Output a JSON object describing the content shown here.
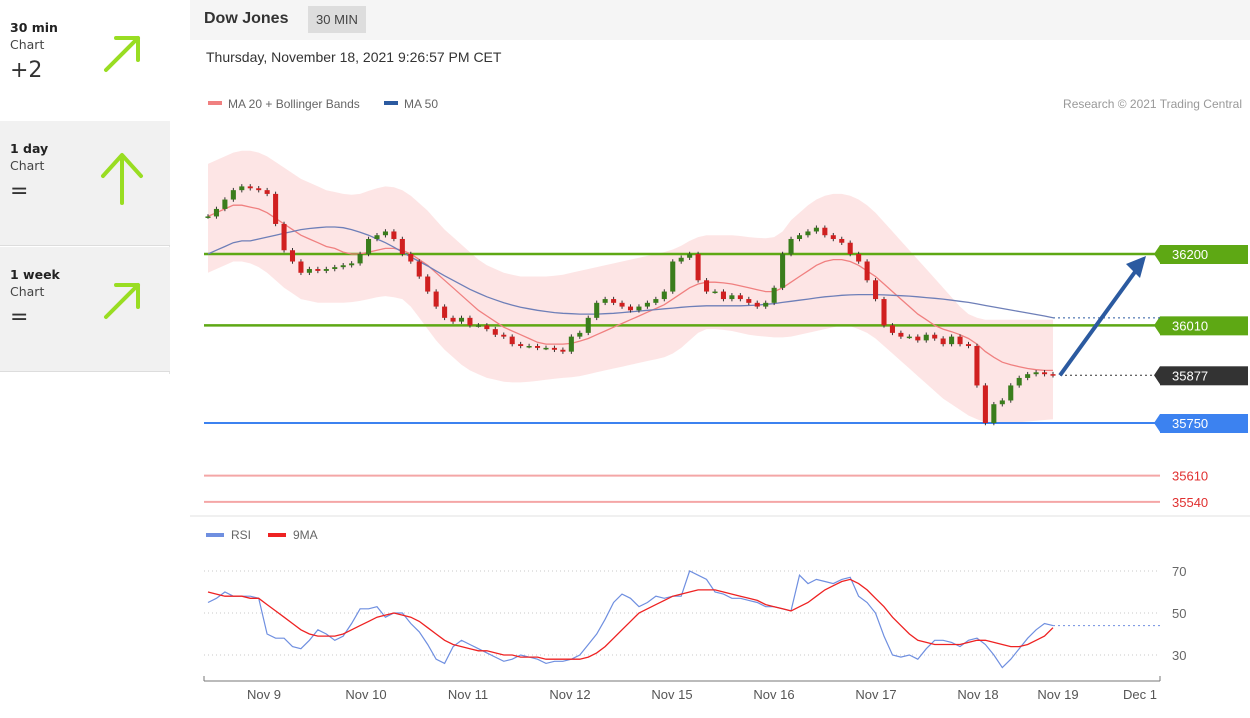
{
  "sidebar": {
    "items": [
      {
        "label": "30 min",
        "sub": "Chart",
        "score": "+2",
        "direction": "up-right",
        "color": "#99dd22"
      },
      {
        "label": "1 day",
        "sub": "Chart",
        "score": "=",
        "direction": "up",
        "color": "#99dd22"
      },
      {
        "label": "1 week",
        "sub": "Chart",
        "score": "=",
        "direction": "up-right",
        "color": "#99dd22"
      }
    ]
  },
  "header": {
    "title": "Dow Jones",
    "badge": "30 MIN"
  },
  "datetime": "Thursday, November 18, 2021 9:26:57 PM CET",
  "chart_data": [
    {
      "type": "candlestick",
      "credit": "Research © 2021 Trading Central",
      "legend": [
        {
          "name": "MA 20 + Bollinger Bands",
          "color": "#f08080"
        },
        {
          "name": "MA 50",
          "color": "#2b5aa0"
        }
      ],
      "ylim": [
        35500,
        36500
      ],
      "levels": [
        {
          "value": 36200,
          "label": "36200",
          "color": "#5ea814",
          "style": "resistance"
        },
        {
          "value": 36010,
          "label": "36010",
          "color": "#5ea814",
          "style": "resistance"
        },
        {
          "value": 35877,
          "label": "35877",
          "color": "#333333",
          "style": "last"
        },
        {
          "value": 35750,
          "label": "35750",
          "color": "#3c82f0",
          "style": "pivot"
        },
        {
          "value": 35610,
          "label": "35610",
          "color": "#e03030",
          "style": "support"
        },
        {
          "value": 35540,
          "label": "35540",
          "color": "#e03030",
          "style": "support"
        }
      ],
      "forecast_target": 36200,
      "x_labels": [
        "Nov 9",
        "Nov 10",
        "Nov 11",
        "Nov 12",
        "Nov 15",
        "Nov 16",
        "Nov 17",
        "Nov 18",
        "Nov 19",
        "Dec 1"
      ],
      "close": [
        36300,
        36320,
        36345,
        36370,
        36380,
        36375,
        36370,
        36360,
        36280,
        36210,
        36180,
        36150,
        36160,
        36155,
        36160,
        36165,
        36170,
        36175,
        36200,
        36240,
        36250,
        36260,
        36240,
        36200,
        36180,
        36140,
        36100,
        36060,
        36030,
        36020,
        36030,
        36010,
        36010,
        36000,
        35985,
        35980,
        35960,
        35955,
        35955,
        35950,
        35950,
        35945,
        35940,
        35980,
        35990,
        36030,
        36070,
        36080,
        36070,
        36060,
        36050,
        36060,
        36070,
        36080,
        36100,
        36180,
        36190,
        36200,
        36130,
        36100,
        36100,
        36080,
        36090,
        36080,
        36070,
        36060,
        36070,
        36110,
        36200,
        36240,
        36250,
        36260,
        36270,
        36250,
        36240,
        36230,
        36200,
        36180,
        36130,
        36080,
        36010,
        35990,
        35980,
        35980,
        35970,
        35985,
        35975,
        35960,
        35980,
        35960,
        35955,
        35850,
        35750,
        35800,
        35810,
        35850,
        35870,
        35880,
        35885,
        35880,
        35877
      ],
      "ma20": [
        36300,
        36310,
        36320,
        36330,
        36330,
        36325,
        36320,
        36310,
        36295,
        36280,
        36265,
        36250,
        36240,
        36230,
        36220,
        36215,
        36205,
        36200,
        36200,
        36205,
        36210,
        36215,
        36215,
        36210,
        36200,
        36185,
        36170,
        36150,
        36130,
        36110,
        36090,
        36070,
        36050,
        36035,
        36020,
        36005,
        35995,
        35985,
        35975,
        35965,
        35960,
        35960,
        35960,
        35962,
        35968,
        35975,
        35985,
        35995,
        36005,
        36015,
        36025,
        36035,
        36045,
        36055,
        36065,
        36080,
        36095,
        36110,
        36120,
        36125,
        36125,
        36123,
        36120,
        36115,
        36110,
        36105,
        36100,
        36100,
        36110,
        36125,
        36140,
        36155,
        36170,
        36180,
        36185,
        36185,
        36180,
        36170,
        36155,
        36140,
        36120,
        36100,
        36080,
        36060,
        36040,
        36025,
        36010,
        36000,
        35993,
        35985,
        35975,
        35960,
        35940,
        35925,
        35912,
        35905,
        35900,
        35895,
        35892,
        35890,
        35890
      ],
      "ma50": [
        36200,
        36210,
        36220,
        36230,
        36235,
        36235,
        36240,
        36245,
        36250,
        36255,
        36260,
        36265,
        36268,
        36270,
        36272,
        36272,
        36270,
        36265,
        36258,
        36250,
        36240,
        36230,
        36218,
        36205,
        36192,
        36180,
        36168,
        36155,
        36142,
        36130,
        36118,
        36106,
        36096,
        36086,
        36078,
        36070,
        36064,
        36058,
        36054,
        36050,
        36047,
        36044,
        36042,
        36041,
        36040,
        36040,
        36040,
        36041,
        36042,
        36044,
        36046,
        36048,
        36050,
        36052,
        36054,
        36056,
        36058,
        36060,
        36061,
        36062,
        36062,
        36062,
        36062,
        36062,
        36063,
        36064,
        36066,
        36068,
        36071,
        36074,
        36077,
        36080,
        36083,
        36086,
        36088,
        36090,
        36091,
        36092,
        36092,
        36092,
        36091,
        36090,
        36089,
        36088,
        36086,
        36084,
        36082,
        36080,
        36077,
        36074,
        36071,
        36067,
        36063,
        36059,
        36055,
        36051,
        36047,
        36043,
        36039,
        36035,
        36030
      ],
      "bb_upper": [
        36440,
        36450,
        36460,
        36470,
        36475,
        36475,
        36470,
        36460,
        36445,
        36430,
        36415,
        36400,
        36390,
        36380,
        36370,
        36365,
        36360,
        36358,
        36360,
        36368,
        36375,
        36380,
        36378,
        36370,
        36355,
        36335,
        36315,
        36290,
        36265,
        36245,
        36225,
        36205,
        36185,
        36170,
        36160,
        36150,
        36145,
        36140,
        36140,
        36140,
        36140,
        36142,
        36145,
        36150,
        36155,
        36160,
        36165,
        36170,
        36175,
        36180,
        36185,
        36190,
        36195,
        36200,
        36205,
        36212,
        36222,
        36235,
        36245,
        36250,
        36250,
        36250,
        36250,
        36248,
        36245,
        36243,
        36242,
        36245,
        36260,
        36290,
        36310,
        36330,
        36345,
        36355,
        36360,
        36360,
        36355,
        36345,
        36330,
        36310,
        36285,
        36260,
        36235,
        36210,
        36185,
        36160,
        36135,
        36110,
        36085,
        36060,
        36040,
        36030,
        36025,
        36025,
        36025,
        36025,
        36025,
        36025,
        36025,
        36025,
        36025
      ],
      "bb_lower": [
        36150,
        36160,
        36170,
        36180,
        36180,
        36175,
        36165,
        36150,
        36130,
        36110,
        36095,
        36080,
        36075,
        36070,
        36070,
        36070,
        36070,
        36072,
        36075,
        36080,
        36085,
        36088,
        36085,
        36080,
        36060,
        36030,
        36000,
        35970,
        35945,
        35925,
        35905,
        35890,
        35880,
        35870,
        35865,
        35860,
        35858,
        35858,
        35860,
        35862,
        35865,
        35868,
        35870,
        35872,
        35875,
        35880,
        35885,
        35890,
        35895,
        35900,
        35905,
        35910,
        35915,
        35920,
        35925,
        35935,
        35950,
        35970,
        35990,
        36000,
        36000,
        35998,
        35995,
        35990,
        35985,
        35982,
        35980,
        35978,
        35978,
        35980,
        35985,
        35990,
        35995,
        36000,
        36005,
        36010,
        36008,
        36000,
        35990,
        35975,
        35955,
        35935,
        35915,
        35895,
        35875,
        35855,
        35835,
        35815,
        35800,
        35785,
        35770,
        35760,
        35752,
        35748,
        35748,
        35750,
        35752,
        35754,
        35756,
        35758,
        35760
      ],
      "bb_sd_scale": 1
    },
    {
      "type": "line",
      "legend": [
        {
          "name": "RSI",
          "color": "#6f8fe0"
        },
        {
          "name": "9MA",
          "color": "#ee2222"
        }
      ],
      "ylim": [
        20,
        80
      ],
      "yticks": [
        70,
        50,
        30
      ],
      "rsi": [
        55,
        57,
        60,
        58,
        58,
        58,
        57,
        40,
        38,
        38,
        34,
        33,
        37,
        42,
        40,
        37,
        39,
        45,
        52,
        52,
        53,
        48,
        50,
        50,
        45,
        41,
        35,
        28,
        26,
        34,
        37,
        35,
        33,
        31,
        29,
        27,
        28,
        30,
        29,
        28,
        26,
        27,
        27,
        28,
        30,
        35,
        40,
        47,
        55,
        59,
        57,
        53,
        55,
        58,
        57,
        58,
        58,
        70,
        68,
        66,
        60,
        59,
        57,
        57,
        56,
        55,
        53,
        53,
        52,
        51,
        68,
        64,
        66,
        65,
        64,
        66,
        67,
        58,
        55,
        50,
        39,
        30,
        29,
        30,
        28,
        33,
        37,
        37,
        36,
        34,
        37,
        38,
        35,
        30,
        24,
        28,
        33,
        38,
        42,
        45,
        44
      ],
      "ma9": [
        60,
        59,
        58,
        58,
        58,
        57,
        57,
        54,
        51,
        48,
        45,
        42,
        40,
        39,
        39,
        39,
        40,
        42,
        44,
        46,
        48,
        49,
        50,
        49,
        48,
        46,
        43,
        40,
        37,
        35,
        34,
        33,
        32,
        32,
        31,
        30,
        30,
        29,
        29,
        29,
        28,
        28,
        28,
        28,
        28,
        29,
        31,
        34,
        38,
        42,
        46,
        50,
        52,
        54,
        56,
        58,
        59,
        60,
        61,
        61,
        61,
        60,
        59,
        58,
        57,
        56,
        54,
        53,
        52,
        51,
        53,
        55,
        58,
        61,
        63,
        65,
        66,
        64,
        61,
        57,
        53,
        48,
        44,
        40,
        37,
        36,
        35,
        35,
        35,
        35,
        36,
        37,
        37,
        36,
        35,
        34,
        34,
        35,
        37,
        39,
        43
      ]
    }
  ]
}
